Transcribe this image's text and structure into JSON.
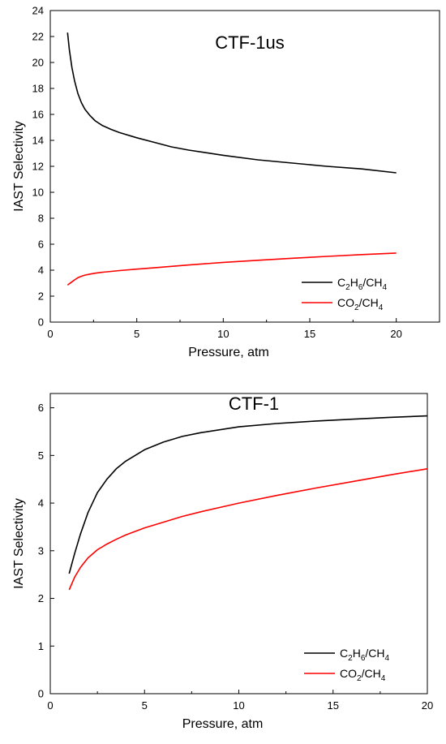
{
  "colors": {
    "ethane": "#000000",
    "co2": "#ff0000",
    "axis": "#000000"
  },
  "chart_data": [
    {
      "type": "line",
      "title": "CTF-1us",
      "xlabel": "Pressure, atm",
      "ylabel": "IAST Selectivity",
      "xlim": [
        0,
        22.5
      ],
      "ylim": [
        0,
        24
      ],
      "xticks": [
        0,
        5,
        10,
        15,
        20
      ],
      "yticks": [
        0,
        2,
        4,
        6,
        8,
        10,
        12,
        14,
        16,
        18,
        20,
        22,
        24
      ],
      "grid": false,
      "legend_position": "bottom-right",
      "series": [
        {
          "legend": {
            "a": "C",
            "a_sub": "2",
            "b": "H",
            "b_sub": "6",
            "c": "/CH",
            "c_sub": "4"
          },
          "color": "#000000",
          "x": [
            1.0,
            1.1,
            1.25,
            1.4,
            1.6,
            1.8,
            2.0,
            2.3,
            2.6,
            3.0,
            3.5,
            4,
            5,
            6,
            7,
            8,
            9,
            10,
            12,
            14,
            16,
            18,
            20
          ],
          "y": [
            22.3,
            21.0,
            19.6,
            18.6,
            17.6,
            16.9,
            16.4,
            15.9,
            15.5,
            15.15,
            14.85,
            14.6,
            14.2,
            13.85,
            13.5,
            13.25,
            13.05,
            12.85,
            12.5,
            12.25,
            12.0,
            11.8,
            11.5
          ]
        },
        {
          "legend": {
            "a": "CO",
            "a_sub": "2",
            "b": "/CH",
            "b_sub": "4"
          },
          "color": "#ff0000",
          "x": [
            1.0,
            1.2,
            1.4,
            1.6,
            1.8,
            2.0,
            2.3,
            2.6,
            3.0,
            4,
            5,
            6,
            8,
            10,
            12,
            14,
            16,
            18,
            20
          ],
          "y": [
            2.85,
            3.05,
            3.25,
            3.42,
            3.53,
            3.62,
            3.7,
            3.77,
            3.84,
            3.97,
            4.08,
            4.18,
            4.4,
            4.6,
            4.76,
            4.92,
            5.06,
            5.2,
            5.32
          ]
        }
      ]
    },
    {
      "type": "line",
      "title": "CTF-1",
      "xlabel": "Pressure, atm",
      "ylabel": "IAST Selectivity",
      "xlim": [
        0,
        20
      ],
      "ylim": [
        0,
        6.3
      ],
      "xticks": [
        0,
        5,
        10,
        15,
        20
      ],
      "yticks": [
        0,
        1,
        2,
        3,
        4,
        5,
        6
      ],
      "grid": false,
      "legend_position": "bottom-right",
      "series": [
        {
          "legend": {
            "a": "C",
            "a_sub": "2",
            "b": "H",
            "b_sub": "6",
            "c": "/CH",
            "c_sub": "4"
          },
          "color": "#000000",
          "x": [
            1.0,
            1.3,
            1.6,
            2.0,
            2.5,
            3.0,
            3.5,
            4,
            5,
            6,
            7,
            8,
            10,
            12,
            14,
            16,
            18,
            20
          ],
          "y": [
            2.52,
            2.95,
            3.35,
            3.8,
            4.22,
            4.5,
            4.72,
            4.88,
            5.12,
            5.28,
            5.4,
            5.48,
            5.6,
            5.67,
            5.72,
            5.76,
            5.8,
            5.83
          ]
        },
        {
          "legend": {
            "a": "CO",
            "a_sub": "2",
            "b": "/CH",
            "b_sub": "4"
          },
          "color": "#ff0000",
          "x": [
            1.0,
            1.3,
            1.6,
            2.0,
            2.5,
            3.0,
            3.5,
            4,
            5,
            6,
            7,
            8,
            10,
            12,
            14,
            16,
            18,
            20
          ],
          "y": [
            2.18,
            2.45,
            2.65,
            2.85,
            3.02,
            3.14,
            3.24,
            3.33,
            3.48,
            3.6,
            3.72,
            3.82,
            4.0,
            4.16,
            4.31,
            4.45,
            4.59,
            4.72
          ]
        }
      ]
    }
  ]
}
